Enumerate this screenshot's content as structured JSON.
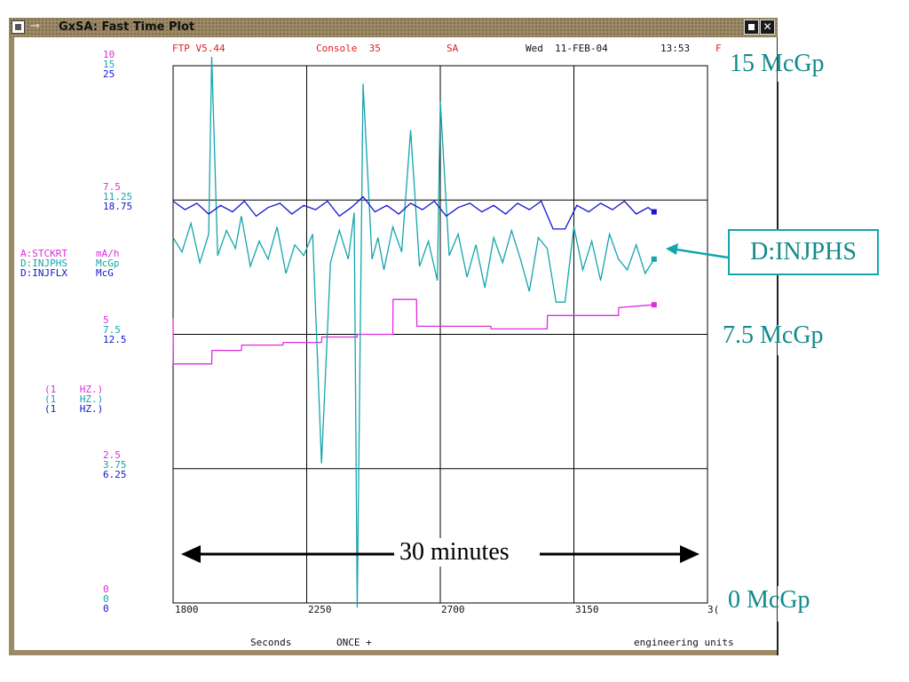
{
  "window": {
    "title": "GxSA: Fast Time Plot",
    "icon": "app-icon",
    "pin_icon": "pin-icon",
    "buttons": [
      "minimize",
      "close"
    ],
    "close_glyph": "✕"
  },
  "header": {
    "version": "FTP V5.44",
    "console": "Console  35",
    "subsystem": "SA",
    "date": "Wed  11-FEB-04",
    "time": "13:53",
    "trailing": "F"
  },
  "y_scales": [
    {
      "mag": "10",
      "cyan": "15",
      "blue": "25"
    },
    {
      "mag": "7.5",
      "cyan": "11.25",
      "blue": "18.75"
    },
    {
      "mag": "5",
      "cyan": "7.5",
      "blue": "12.5"
    },
    {
      "mag": "2.5",
      "cyan": "3.75",
      "blue": "6.25"
    },
    {
      "mag": "0",
      "cyan": "0",
      "blue": "0"
    }
  ],
  "devices": [
    {
      "name": "A:STCKRT",
      "unit": "mA/h",
      "rate": "(1    HZ.)",
      "color": "#e02be0"
    },
    {
      "name": "D:INJPHS",
      "unit": "McGp",
      "rate": "(1    HZ.)",
      "color": "#13a5ad"
    },
    {
      "name": "D:INJFLX",
      "unit": "McG",
      "rate": "(1    HZ.)",
      "color": "#1414d2"
    }
  ],
  "x_axis": {
    "ticks": [
      "1800",
      "2250",
      "2700",
      "3150",
      "3("
    ],
    "label": "Seconds",
    "mode": "ONCE +",
    "units": "engineering units"
  },
  "annotations": {
    "top": "15 McGp",
    "middle": "7.5 McGp",
    "bottom": "0 McGp",
    "series_label": "D:INJPHS",
    "duration": "30 minutes"
  },
  "chart_data": {
    "type": "line",
    "xlabel": "Seconds",
    "xlim": [
      1800,
      3600
    ],
    "series": [
      {
        "name": "A:STCKRT",
        "ylim": [
          0,
          10
        ],
        "color": "#e02be0",
        "x": [
          1800,
          1801,
          1930,
          1931,
          2030,
          2031,
          2170,
          2171,
          2300,
          2301,
          2420,
          2421,
          2540,
          2541,
          2620,
          2621,
          2870,
          2871,
          3060,
          3061,
          3300,
          3301,
          3420
        ],
        "y": [
          5.3,
          4.45,
          4.45,
          4.7,
          4.7,
          4.8,
          4.8,
          4.85,
          4.85,
          4.95,
          4.95,
          5.0,
          5.0,
          5.65,
          5.65,
          5.15,
          5.15,
          5.1,
          5.1,
          5.35,
          5.35,
          5.5,
          5.55
        ]
      },
      {
        "name": "D:INJPHS",
        "ylim": [
          0,
          15
        ],
        "color": "#13a5ad",
        "x": [
          1800,
          1830,
          1860,
          1890,
          1920,
          1930,
          1950,
          1980,
          2010,
          2030,
          2060,
          2090,
          2120,
          2150,
          2180,
          2210,
          2240,
          2270,
          2300,
          2330,
          2360,
          2390,
          2410,
          2420,
          2440,
          2470,
          2490,
          2510,
          2540,
          2570,
          2600,
          2630,
          2660,
          2690,
          2700,
          2730,
          2760,
          2790,
          2820,
          2850,
          2880,
          2910,
          2940,
          2970,
          3000,
          3030,
          3060,
          3090,
          3120,
          3150,
          3180,
          3210,
          3240,
          3270,
          3300,
          3330,
          3360,
          3390,
          3420
        ],
        "y": [
          10.2,
          9.8,
          10.6,
          9.5,
          10.3,
          15.0,
          9.7,
          10.4,
          9.9,
          10.8,
          9.4,
          10.1,
          9.6,
          10.5,
          9.2,
          10.0,
          9.7,
          10.3,
          3.9,
          9.5,
          10.4,
          9.6,
          10.9,
          0.0,
          14.5,
          9.6,
          10.2,
          9.3,
          10.5,
          9.8,
          13.2,
          9.4,
          10.1,
          9.0,
          14.0,
          9.7,
          10.3,
          9.1,
          10.0,
          8.8,
          10.2,
          9.5,
          10.4,
          9.6,
          8.7,
          10.2,
          9.9,
          8.4,
          8.4,
          10.5,
          9.3,
          10.1,
          9.0,
          10.3,
          9.6,
          9.3,
          10.0,
          9.2,
          9.6
        ]
      },
      {
        "name": "D:INJFLX",
        "ylim": [
          0,
          25
        ],
        "color": "#1414d2",
        "x": [
          1800,
          1840,
          1880,
          1920,
          1960,
          2000,
          2040,
          2080,
          2120,
          2160,
          2200,
          2240,
          2280,
          2320,
          2360,
          2400,
          2440,
          2480,
          2520,
          2560,
          2600,
          2640,
          2680,
          2720,
          2760,
          2800,
          2840,
          2880,
          2920,
          2960,
          3000,
          3040,
          3080,
          3120,
          3160,
          3200,
          3240,
          3280,
          3320,
          3360,
          3400,
          3420
        ],
        "y": [
          18.7,
          18.3,
          18.6,
          18.1,
          18.5,
          18.2,
          18.7,
          18.0,
          18.4,
          18.6,
          18.1,
          18.5,
          18.3,
          18.7,
          18.0,
          18.4,
          18.9,
          18.2,
          18.5,
          18.1,
          18.6,
          18.3,
          18.7,
          18.0,
          18.4,
          18.6,
          18.2,
          18.5,
          18.1,
          18.6,
          18.3,
          18.7,
          17.4,
          17.4,
          18.5,
          18.2,
          18.6,
          18.3,
          18.7,
          18.1,
          18.4,
          18.2
        ]
      }
    ]
  }
}
